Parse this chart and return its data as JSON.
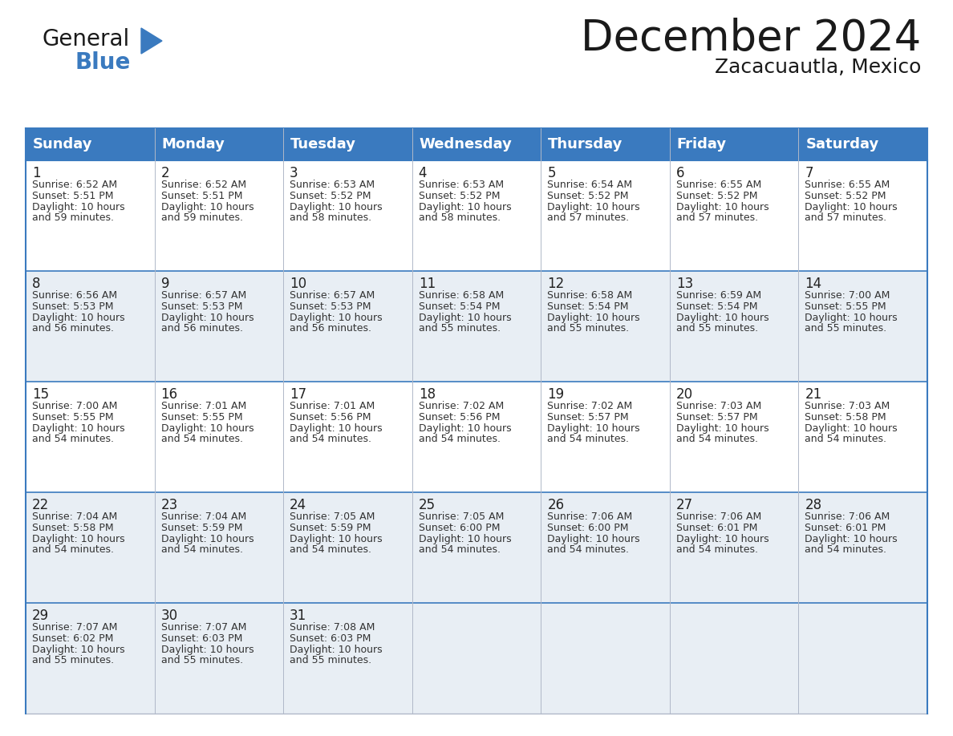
{
  "title": "December 2024",
  "subtitle": "Zacacuautla, Mexico",
  "header_bg": "#3a7abf",
  "header_text": "#ffffff",
  "row_bg_light": "#e8eef4",
  "row_bg_white": "#ffffff",
  "cell_border_color": "#3a7abf",
  "grid_line_color": "#b0b8c8",
  "day_names": [
    "Sunday",
    "Monday",
    "Tuesday",
    "Wednesday",
    "Thursday",
    "Friday",
    "Saturday"
  ],
  "title_fontsize": 38,
  "subtitle_fontsize": 18,
  "header_fontsize": 13,
  "day_num_fontsize": 12,
  "cell_fontsize": 9,
  "days": [
    {
      "day": 1,
      "col": 0,
      "row": 0,
      "sunrise": "6:52 AM",
      "sunset": "5:51 PM",
      "dl_suffix": "59 minutes."
    },
    {
      "day": 2,
      "col": 1,
      "row": 0,
      "sunrise": "6:52 AM",
      "sunset": "5:51 PM",
      "dl_suffix": "59 minutes."
    },
    {
      "day": 3,
      "col": 2,
      "row": 0,
      "sunrise": "6:53 AM",
      "sunset": "5:52 PM",
      "dl_suffix": "58 minutes."
    },
    {
      "day": 4,
      "col": 3,
      "row": 0,
      "sunrise": "6:53 AM",
      "sunset": "5:52 PM",
      "dl_suffix": "58 minutes."
    },
    {
      "day": 5,
      "col": 4,
      "row": 0,
      "sunrise": "6:54 AM",
      "sunset": "5:52 PM",
      "dl_suffix": "57 minutes."
    },
    {
      "day": 6,
      "col": 5,
      "row": 0,
      "sunrise": "6:55 AM",
      "sunset": "5:52 PM",
      "dl_suffix": "57 minutes."
    },
    {
      "day": 7,
      "col": 6,
      "row": 0,
      "sunrise": "6:55 AM",
      "sunset": "5:52 PM",
      "dl_suffix": "57 minutes."
    },
    {
      "day": 8,
      "col": 0,
      "row": 1,
      "sunrise": "6:56 AM",
      "sunset": "5:53 PM",
      "dl_suffix": "56 minutes."
    },
    {
      "day": 9,
      "col": 1,
      "row": 1,
      "sunrise": "6:57 AM",
      "sunset": "5:53 PM",
      "dl_suffix": "56 minutes."
    },
    {
      "day": 10,
      "col": 2,
      "row": 1,
      "sunrise": "6:57 AM",
      "sunset": "5:53 PM",
      "dl_suffix": "56 minutes."
    },
    {
      "day": 11,
      "col": 3,
      "row": 1,
      "sunrise": "6:58 AM",
      "sunset": "5:54 PM",
      "dl_suffix": "55 minutes."
    },
    {
      "day": 12,
      "col": 4,
      "row": 1,
      "sunrise": "6:58 AM",
      "sunset": "5:54 PM",
      "dl_suffix": "55 minutes."
    },
    {
      "day": 13,
      "col": 5,
      "row": 1,
      "sunrise": "6:59 AM",
      "sunset": "5:54 PM",
      "dl_suffix": "55 minutes."
    },
    {
      "day": 14,
      "col": 6,
      "row": 1,
      "sunrise": "7:00 AM",
      "sunset": "5:55 PM",
      "dl_suffix": "55 minutes."
    },
    {
      "day": 15,
      "col": 0,
      "row": 2,
      "sunrise": "7:00 AM",
      "sunset": "5:55 PM",
      "dl_suffix": "54 minutes."
    },
    {
      "day": 16,
      "col": 1,
      "row": 2,
      "sunrise": "7:01 AM",
      "sunset": "5:55 PM",
      "dl_suffix": "54 minutes."
    },
    {
      "day": 17,
      "col": 2,
      "row": 2,
      "sunrise": "7:01 AM",
      "sunset": "5:56 PM",
      "dl_suffix": "54 minutes."
    },
    {
      "day": 18,
      "col": 3,
      "row": 2,
      "sunrise": "7:02 AM",
      "sunset": "5:56 PM",
      "dl_suffix": "54 minutes."
    },
    {
      "day": 19,
      "col": 4,
      "row": 2,
      "sunrise": "7:02 AM",
      "sunset": "5:57 PM",
      "dl_suffix": "54 minutes."
    },
    {
      "day": 20,
      "col": 5,
      "row": 2,
      "sunrise": "7:03 AM",
      "sunset": "5:57 PM",
      "dl_suffix": "54 minutes."
    },
    {
      "day": 21,
      "col": 6,
      "row": 2,
      "sunrise": "7:03 AM",
      "sunset": "5:58 PM",
      "dl_suffix": "54 minutes."
    },
    {
      "day": 22,
      "col": 0,
      "row": 3,
      "sunrise": "7:04 AM",
      "sunset": "5:58 PM",
      "dl_suffix": "54 minutes."
    },
    {
      "day": 23,
      "col": 1,
      "row": 3,
      "sunrise": "7:04 AM",
      "sunset": "5:59 PM",
      "dl_suffix": "54 minutes."
    },
    {
      "day": 24,
      "col": 2,
      "row": 3,
      "sunrise": "7:05 AM",
      "sunset": "5:59 PM",
      "dl_suffix": "54 minutes."
    },
    {
      "day": 25,
      "col": 3,
      "row": 3,
      "sunrise": "7:05 AM",
      "sunset": "6:00 PM",
      "dl_suffix": "54 minutes."
    },
    {
      "day": 26,
      "col": 4,
      "row": 3,
      "sunrise": "7:06 AM",
      "sunset": "6:00 PM",
      "dl_suffix": "54 minutes."
    },
    {
      "day": 27,
      "col": 5,
      "row": 3,
      "sunrise": "7:06 AM",
      "sunset": "6:01 PM",
      "dl_suffix": "54 minutes."
    },
    {
      "day": 28,
      "col": 6,
      "row": 3,
      "sunrise": "7:06 AM",
      "sunset": "6:01 PM",
      "dl_suffix": "54 minutes."
    },
    {
      "day": 29,
      "col": 0,
      "row": 4,
      "sunrise": "7:07 AM",
      "sunset": "6:02 PM",
      "dl_suffix": "55 minutes."
    },
    {
      "day": 30,
      "col": 1,
      "row": 4,
      "sunrise": "7:07 AM",
      "sunset": "6:03 PM",
      "dl_suffix": "55 minutes."
    },
    {
      "day": 31,
      "col": 2,
      "row": 4,
      "sunrise": "7:08 AM",
      "sunset": "6:03 PM",
      "dl_suffix": "55 minutes."
    }
  ]
}
